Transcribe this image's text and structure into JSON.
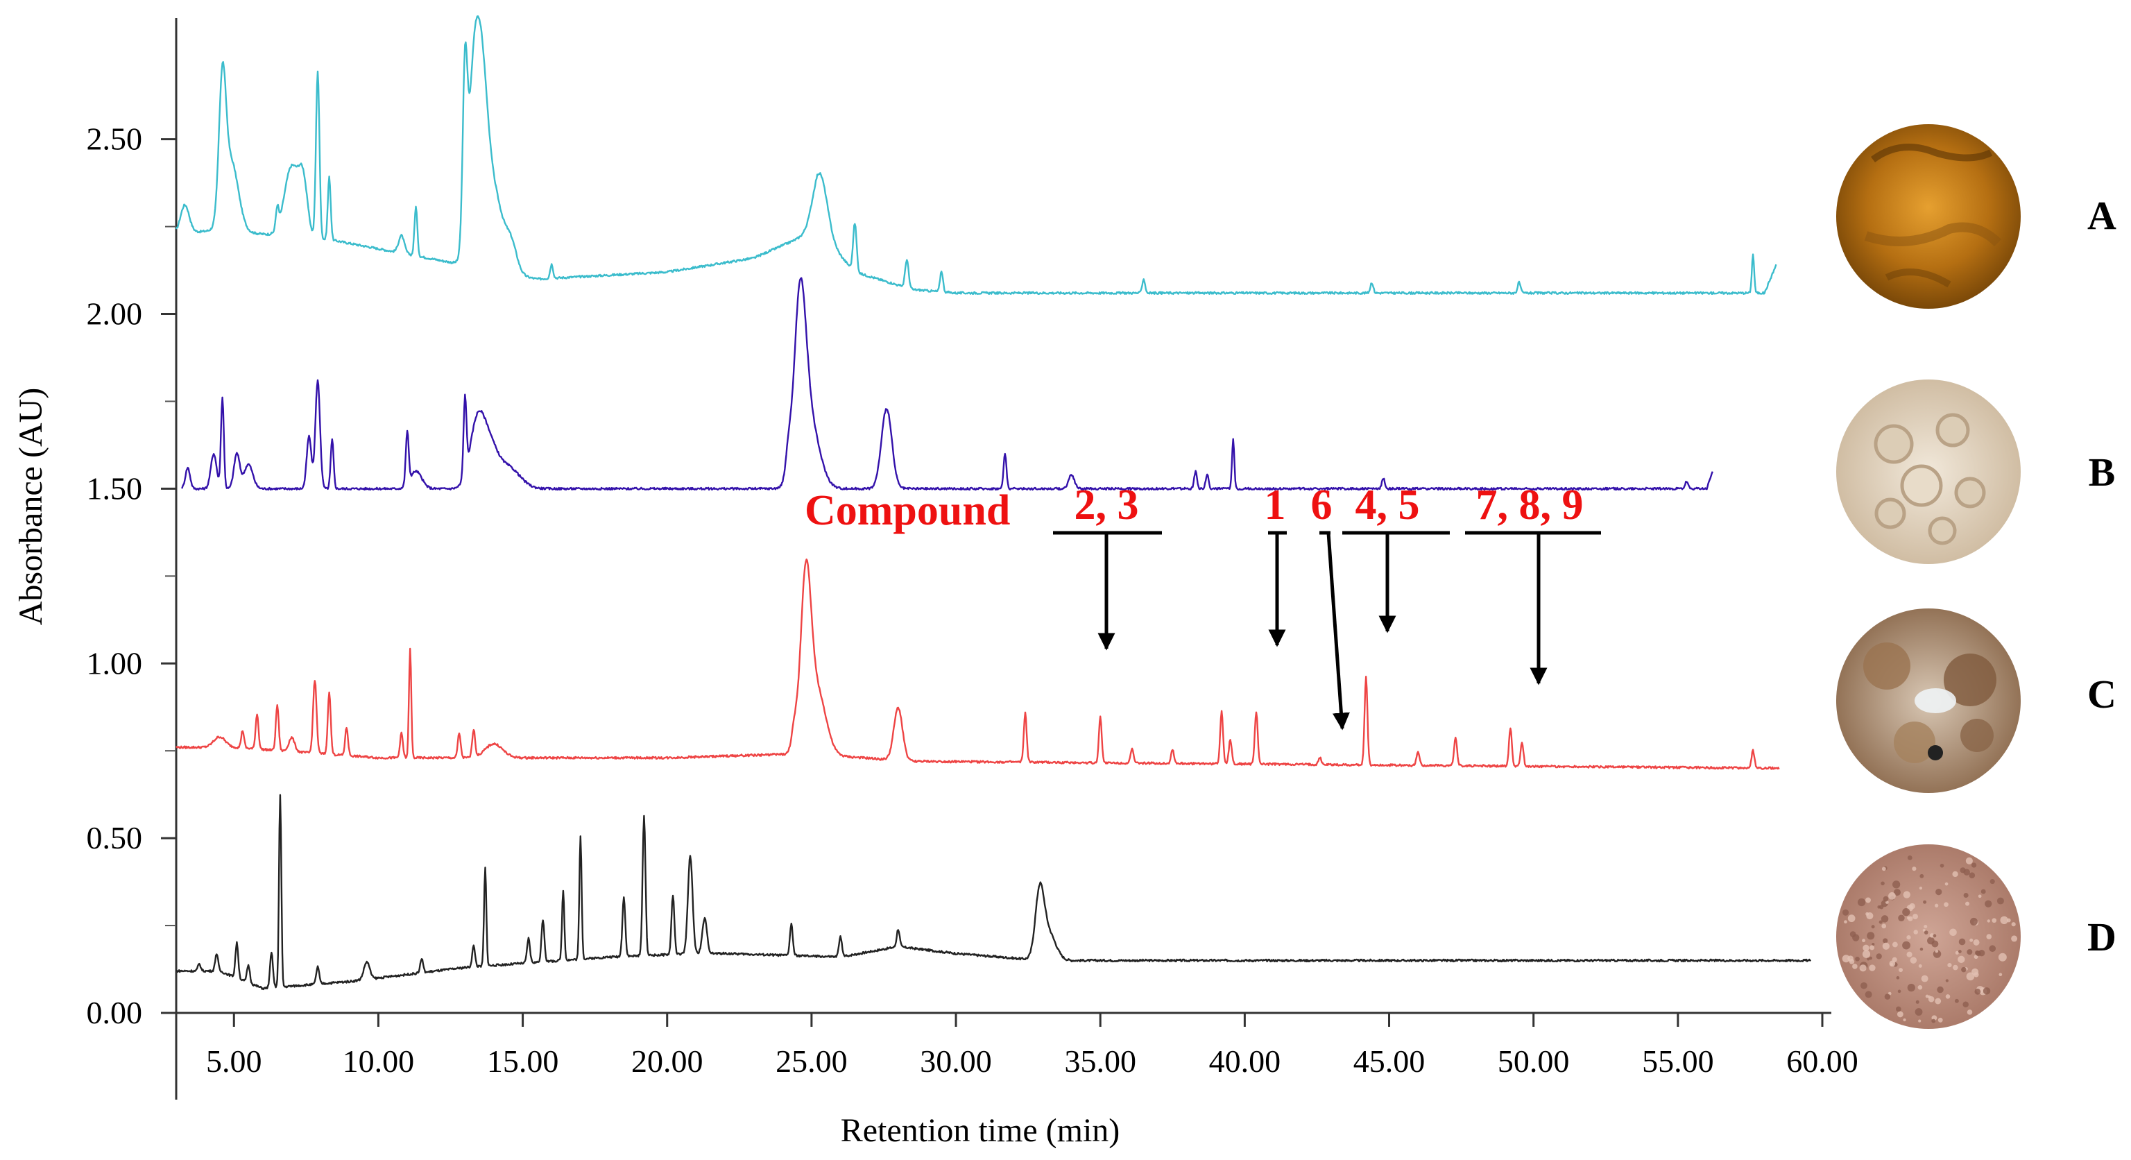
{
  "chart_data": {
    "type": "line",
    "xlabel": "Retention time (min)",
    "ylabel": "Absorbance (AU)",
    "xlim": [
      3.0,
      60.0
    ],
    "ylim": [
      0.0,
      2.68
    ],
    "x_ticks": [
      "5.00",
      "10.00",
      "15.00",
      "20.00",
      "25.00",
      "30.00",
      "35.00",
      "40.00",
      "45.00",
      "50.00",
      "55.00",
      "60.00"
    ],
    "y_ticks": [
      "0.00",
      "0.50",
      "1.00",
      "1.50",
      "2.00",
      "2.50"
    ],
    "series": [
      {
        "name": "A",
        "color": "#3bbccc",
        "xmax": 58.4,
        "baseline": [
          [
            3.0,
            2.23
          ],
          [
            4.5,
            2.24
          ],
          [
            8.5,
            2.21
          ],
          [
            13.0,
            2.14
          ],
          [
            15.5,
            2.1
          ],
          [
            20.0,
            2.12
          ],
          [
            23.0,
            2.16
          ],
          [
            25.2,
            2.24
          ],
          [
            26.5,
            2.12
          ],
          [
            28.5,
            2.07
          ],
          [
            30.0,
            2.06
          ],
          [
            58.0,
            2.06
          ],
          [
            58.4,
            2.14
          ]
        ],
        "peaks": [
          [
            3.3,
            0.08,
            0.15
          ],
          [
            4.6,
            0.38,
            0.12
          ],
          [
            4.9,
            0.2,
            0.25
          ],
          [
            6.5,
            0.06,
            0.05
          ],
          [
            7.0,
            0.2,
            0.25
          ],
          [
            7.4,
            0.14,
            0.15
          ],
          [
            7.9,
            0.48,
            0.06
          ],
          [
            8.3,
            0.18,
            0.05
          ],
          [
            10.8,
            0.05,
            0.1
          ],
          [
            11.3,
            0.14,
            0.05
          ],
          [
            13.0,
            0.46,
            0.08
          ],
          [
            13.3,
            0.5,
            0.2
          ],
          [
            13.6,
            0.4,
            0.2
          ],
          [
            14.0,
            0.22,
            0.3
          ],
          [
            14.6,
            0.08,
            0.2
          ],
          [
            16.0,
            0.04,
            0.05
          ],
          [
            25.3,
            0.17,
            0.25
          ],
          [
            26.5,
            0.14,
            0.06
          ],
          [
            28.3,
            0.08,
            0.06
          ],
          [
            29.5,
            0.06,
            0.05
          ],
          [
            36.5,
            0.04,
            0.05
          ],
          [
            44.4,
            0.03,
            0.05
          ],
          [
            49.5,
            0.03,
            0.05
          ],
          [
            57.6,
            0.11,
            0.04
          ]
        ]
      },
      {
        "name": "B",
        "color": "#3311aa",
        "xmax": 56.2,
        "baseline": [
          [
            3.2,
            1.5
          ],
          [
            15.0,
            1.5
          ],
          [
            56.0,
            1.5
          ],
          [
            56.2,
            1.55
          ]
        ],
        "peaks": [
          [
            3.4,
            0.06,
            0.08
          ],
          [
            4.3,
            0.1,
            0.1
          ],
          [
            4.6,
            0.26,
            0.05
          ],
          [
            5.1,
            0.1,
            0.1
          ],
          [
            5.5,
            0.07,
            0.15
          ],
          [
            7.6,
            0.15,
            0.08
          ],
          [
            7.9,
            0.31,
            0.08
          ],
          [
            8.4,
            0.14,
            0.05
          ],
          [
            11.0,
            0.15,
            0.05
          ],
          [
            11.3,
            0.05,
            0.2
          ],
          [
            13.0,
            0.22,
            0.05
          ],
          [
            13.4,
            0.16,
            0.25
          ],
          [
            13.8,
            0.12,
            0.3
          ],
          [
            14.5,
            0.06,
            0.4
          ],
          [
            24.2,
            0.07,
            0.1
          ],
          [
            24.6,
            0.46,
            0.2
          ],
          [
            24.9,
            0.2,
            0.35
          ],
          [
            27.6,
            0.23,
            0.18
          ],
          [
            31.7,
            0.1,
            0.05
          ],
          [
            34.0,
            0.04,
            0.1
          ],
          [
            38.3,
            0.05,
            0.05
          ],
          [
            38.7,
            0.04,
            0.05
          ],
          [
            39.6,
            0.14,
            0.04
          ],
          [
            44.8,
            0.03,
            0.05
          ],
          [
            55.3,
            0.02,
            0.05
          ]
        ]
      },
      {
        "name": "C",
        "color": "#ee4444",
        "xmax": 58.5,
        "baseline": [
          [
            3.0,
            0.76
          ],
          [
            5.0,
            0.76
          ],
          [
            10.0,
            0.73
          ],
          [
            15.0,
            0.73
          ],
          [
            20.0,
            0.73
          ],
          [
            24.0,
            0.74
          ],
          [
            25.0,
            0.74
          ],
          [
            28.5,
            0.72
          ],
          [
            58.5,
            0.7
          ]
        ],
        "peaks": [
          [
            4.5,
            0.03,
            0.2
          ],
          [
            5.3,
            0.05,
            0.05
          ],
          [
            5.8,
            0.1,
            0.05
          ],
          [
            6.5,
            0.13,
            0.05
          ],
          [
            7.0,
            0.04,
            0.1
          ],
          [
            7.8,
            0.21,
            0.06
          ],
          [
            8.3,
            0.18,
            0.05
          ],
          [
            8.9,
            0.08,
            0.05
          ],
          [
            10.8,
            0.07,
            0.05
          ],
          [
            11.1,
            0.31,
            0.04
          ],
          [
            12.8,
            0.07,
            0.05
          ],
          [
            13.3,
            0.08,
            0.05
          ],
          [
            14.0,
            0.04,
            0.3
          ],
          [
            24.4,
            0.06,
            0.1
          ],
          [
            24.8,
            0.48,
            0.18
          ],
          [
            25.2,
            0.18,
            0.3
          ],
          [
            28.0,
            0.15,
            0.15
          ],
          [
            32.4,
            0.14,
            0.05
          ],
          [
            35.0,
            0.13,
            0.05
          ],
          [
            36.1,
            0.04,
            0.05
          ],
          [
            37.5,
            0.04,
            0.05
          ],
          [
            39.2,
            0.15,
            0.05
          ],
          [
            39.5,
            0.07,
            0.05
          ],
          [
            40.4,
            0.15,
            0.05
          ],
          [
            42.6,
            0.02,
            0.05
          ],
          [
            44.2,
            0.25,
            0.05
          ],
          [
            46.0,
            0.04,
            0.05
          ],
          [
            47.3,
            0.08,
            0.05
          ],
          [
            49.2,
            0.11,
            0.05
          ],
          [
            49.6,
            0.07,
            0.05
          ],
          [
            57.6,
            0.05,
            0.05
          ]
        ]
      },
      {
        "name": "D",
        "color": "#222222",
        "xmax": 59.6,
        "baseline": [
          [
            3.0,
            0.12
          ],
          [
            4.5,
            0.12
          ],
          [
            6.0,
            0.07
          ],
          [
            9.0,
            0.09
          ],
          [
            13.0,
            0.13
          ],
          [
            18.0,
            0.16
          ],
          [
            21.0,
            0.17
          ],
          [
            22.0,
            0.17
          ],
          [
            26.0,
            0.16
          ],
          [
            28.0,
            0.19
          ],
          [
            30.0,
            0.17
          ],
          [
            33.0,
            0.15
          ],
          [
            59.6,
            0.15
          ]
        ],
        "peaks": [
          [
            3.8,
            0.02,
            0.05
          ],
          [
            4.4,
            0.05,
            0.05
          ],
          [
            5.1,
            0.1,
            0.05
          ],
          [
            5.5,
            0.05,
            0.05
          ],
          [
            6.3,
            0.1,
            0.05
          ],
          [
            6.6,
            0.55,
            0.04
          ],
          [
            7.9,
            0.05,
            0.05
          ],
          [
            9.6,
            0.05,
            0.1
          ],
          [
            11.5,
            0.04,
            0.05
          ],
          [
            13.3,
            0.06,
            0.05
          ],
          [
            13.7,
            0.28,
            0.04
          ],
          [
            15.2,
            0.07,
            0.05
          ],
          [
            15.7,
            0.12,
            0.05
          ],
          [
            16.4,
            0.2,
            0.04
          ],
          [
            17.0,
            0.35,
            0.04
          ],
          [
            18.5,
            0.17,
            0.05
          ],
          [
            19.2,
            0.4,
            0.05
          ],
          [
            20.2,
            0.17,
            0.05
          ],
          [
            20.8,
            0.28,
            0.08
          ],
          [
            21.3,
            0.1,
            0.08
          ],
          [
            24.3,
            0.09,
            0.05
          ],
          [
            26.0,
            0.06,
            0.05
          ],
          [
            28.0,
            0.05,
            0.05
          ],
          [
            32.9,
            0.18,
            0.15
          ],
          [
            33.2,
            0.08,
            0.25
          ]
        ]
      }
    ],
    "annotations": {
      "label": "Compound",
      "color": "#ee1111",
      "groups": [
        {
          "text": "2, 3",
          "x": 35.0
        },
        {
          "text": "1",
          "x": 40.4
        },
        {
          "text": "6",
          "x": 42.6
        },
        {
          "text": "4, 5",
          "x": 44.2
        },
        {
          "text": "7, 8, 9",
          "x": 49.2
        }
      ]
    },
    "panel_labels": [
      "A",
      "B",
      "C",
      "D"
    ],
    "sample_colors": [
      "#c98a1e",
      "#e7dccb",
      "#b7987d",
      "#c49a88"
    ]
  }
}
